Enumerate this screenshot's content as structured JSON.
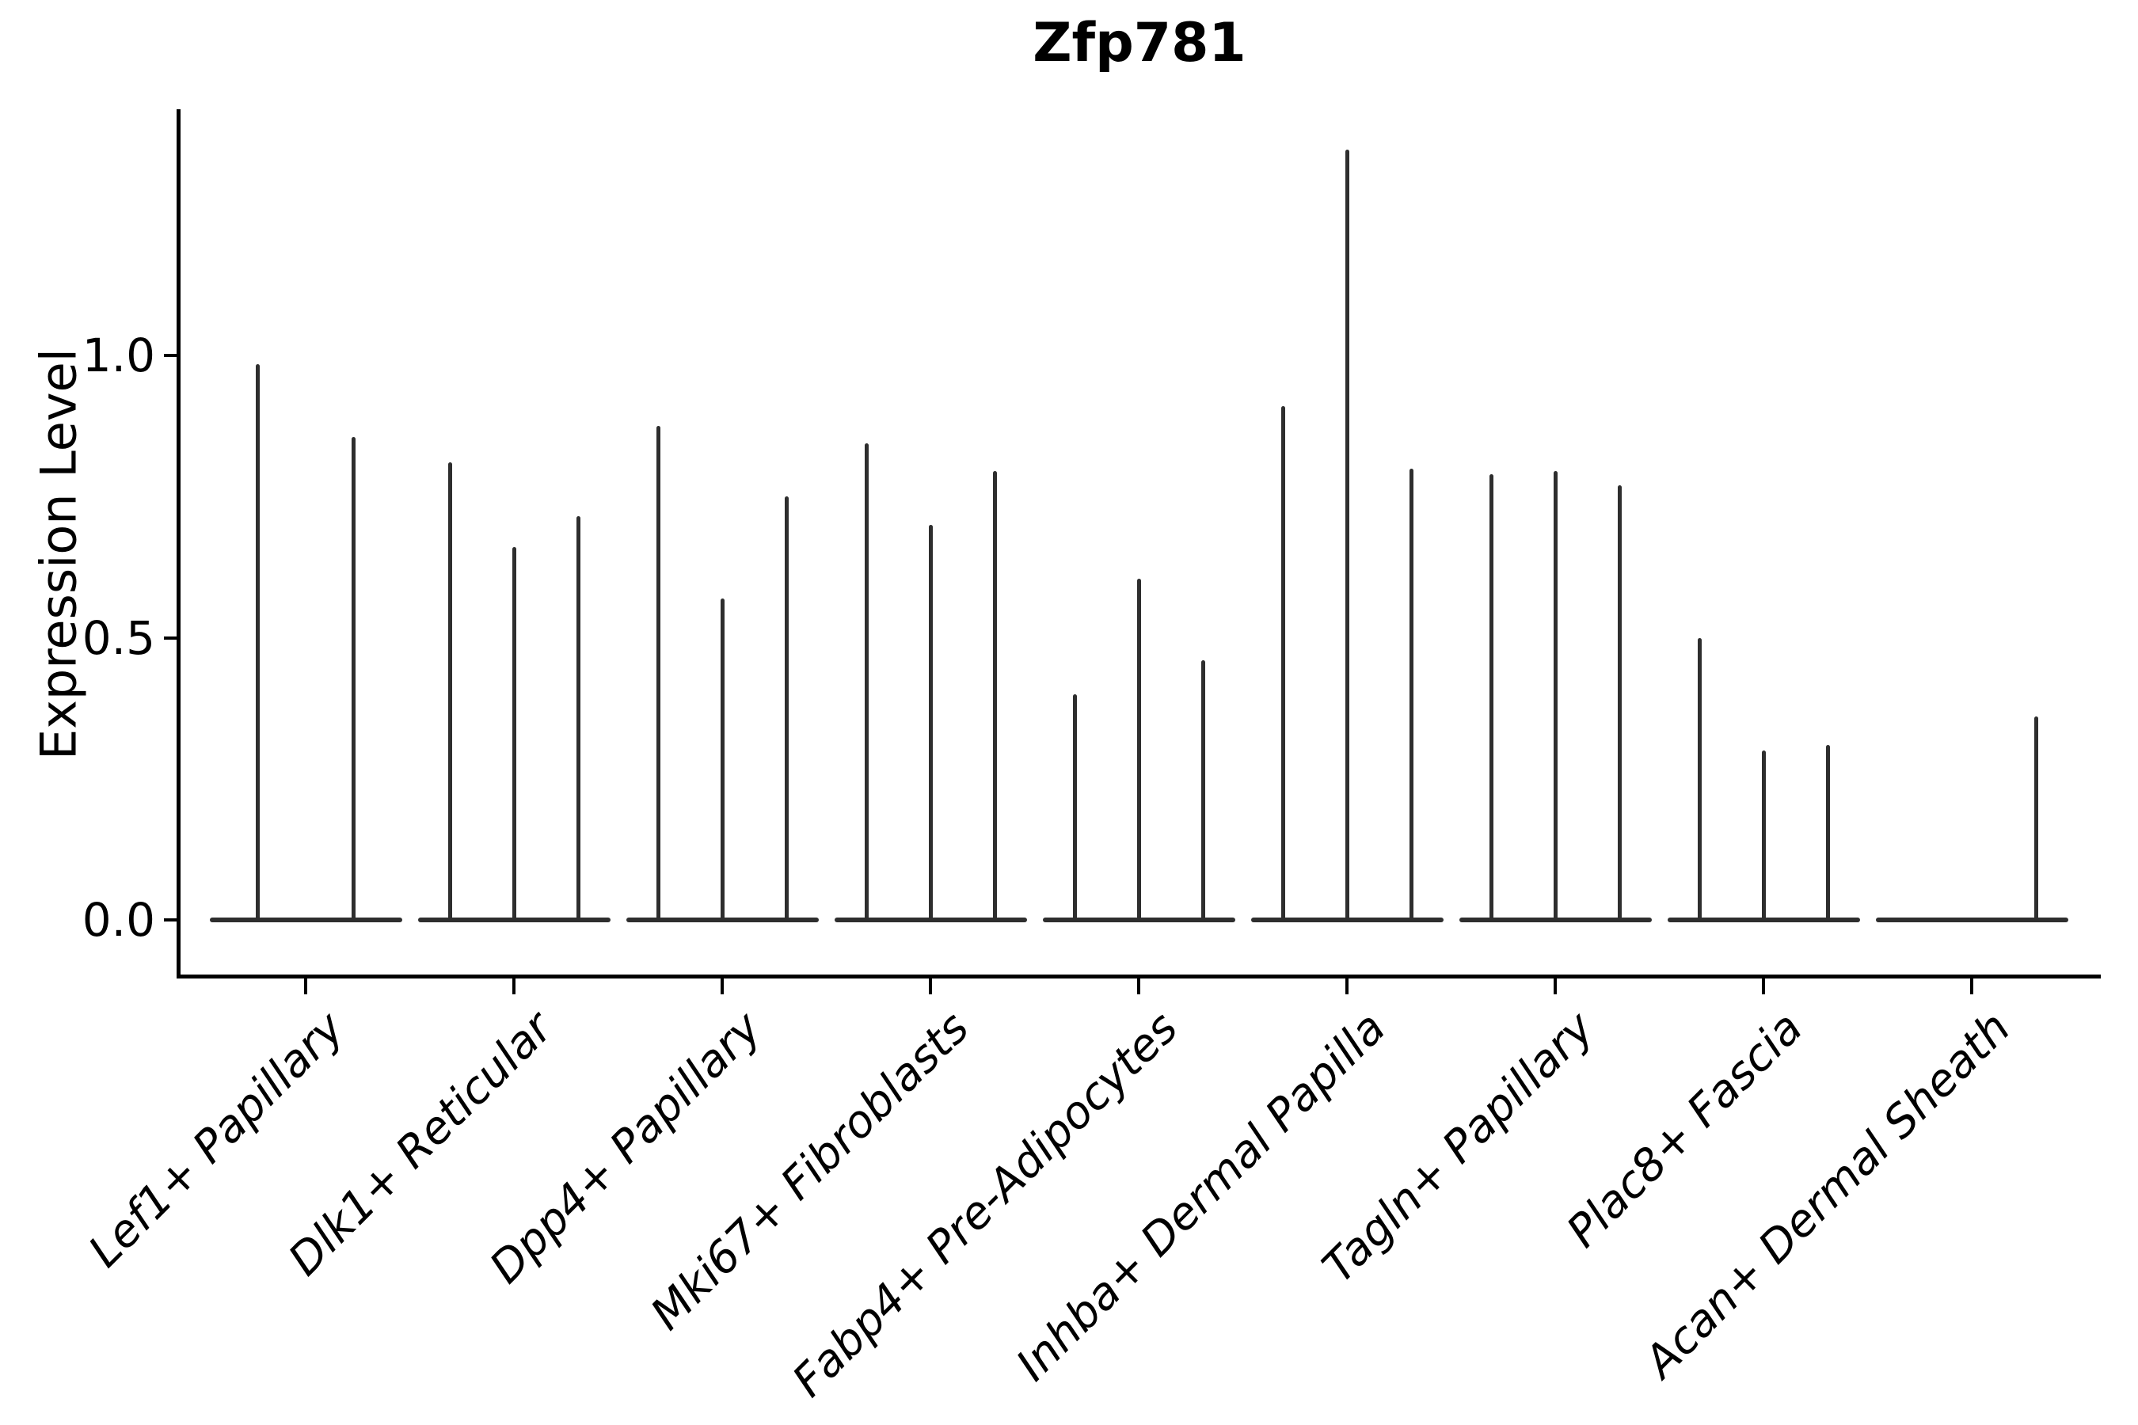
{
  "chart_data": {
    "type": "violin",
    "title": "Zfp781",
    "xlabel": "",
    "ylabel": "Expression Level",
    "ylim": [
      -0.097,
      1.435
    ],
    "grid": false,
    "legend": "none",
    "yticks": [
      {
        "value": 0.0,
        "label": "0.0"
      },
      {
        "value": 0.5,
        "label": "0.5"
      },
      {
        "value": 1.0,
        "label": "1.0"
      }
    ],
    "note": "Sparse single-cell expression violins: each cell-type group shows a flat density base at 0 with thin spikes; spike value = maximum expression level reached by each violin",
    "groups": [
      {
        "label": "Lef1+ Papillary",
        "violin_peaks": [
          0.985,
          0.855
        ]
      },
      {
        "label": "Dlk1+ Reticular",
        "violin_peaks": [
          0.81,
          0.66,
          0.715
        ]
      },
      {
        "label": "Dpp4+ Papillary",
        "violin_peaks": [
          0.875,
          0.57,
          0.75
        ]
      },
      {
        "label": "Mki67+ Fibroblasts",
        "violin_peaks": [
          0.845,
          0.7,
          0.795
        ]
      },
      {
        "label": "Fabp4+ Pre-Adipocytes",
        "violin_peaks": [
          0.4,
          0.605,
          0.46
        ]
      },
      {
        "label": "Inhba+ Dermal Papilla",
        "violin_peaks": [
          0.91,
          1.365,
          0.8
        ]
      },
      {
        "label": "Tagln+ Papillary",
        "violin_peaks": [
          0.79,
          0.795,
          0.77
        ]
      },
      {
        "label": "Plac8+ Fascia",
        "violin_peaks": [
          0.5,
          0.3,
          0.31
        ]
      },
      {
        "label": "Acan+ Dermal Sheath",
        "violin_peaks": [
          null,
          null,
          0.36
        ]
      }
    ],
    "colors": {
      "violin": "#2e2e2e",
      "axis": "#000000",
      "text": "#000000",
      "background": "#ffffff"
    }
  }
}
